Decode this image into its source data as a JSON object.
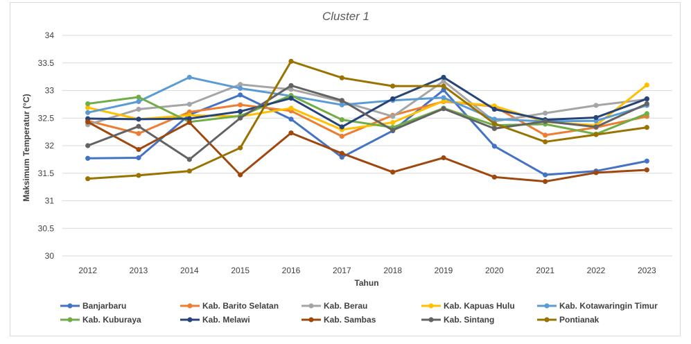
{
  "chart_data": {
    "type": "line",
    "title": "Cluster 1",
    "xlabel": "Tahun",
    "ylabel": "Maksimum Temperatur (°C)",
    "ylim": [
      30,
      34
    ],
    "yticks": [
      "30",
      "30.5",
      "31",
      "31.5",
      "32",
      "32.5",
      "33",
      "33.5",
      "34"
    ],
    "categories": [
      "2012",
      "2013",
      "2014",
      "2015",
      "2016",
      "2017",
      "2018",
      "2019",
      "2020",
      "2021",
      "2022",
      "2023"
    ],
    "grid": "horizontal",
    "legend_position": "bottom",
    "series": [
      {
        "name": "Banjarbaru",
        "color": "#4472c4",
        "values": [
          31.77,
          31.78,
          32.56,
          32.92,
          32.48,
          31.79,
          32.27,
          33.01,
          31.99,
          31.47,
          31.54,
          31.72
        ]
      },
      {
        "name": "Kab. Barito Selatan",
        "color": "#ed7d31",
        "values": [
          32.45,
          32.22,
          32.61,
          32.74,
          32.63,
          32.17,
          32.55,
          32.8,
          32.71,
          32.19,
          32.33,
          32.53
        ]
      },
      {
        "name": "Kab. Berau",
        "color": "#a5a5a5",
        "values": [
          32.38,
          32.66,
          32.75,
          33.11,
          33.02,
          32.8,
          32.53,
          33.17,
          32.44,
          32.59,
          32.73,
          32.84
        ]
      },
      {
        "name": "Kab. Kapuas Hulu",
        "color": "#ffc000",
        "values": [
          32.69,
          32.48,
          32.55,
          32.53,
          32.68,
          32.29,
          32.42,
          32.81,
          32.72,
          32.43,
          32.37,
          33.1
        ]
      },
      {
        "name": "Kab. Kotawaringin Timur",
        "color": "#5b9bd5",
        "values": [
          32.6,
          32.8,
          33.24,
          33.04,
          32.9,
          32.74,
          32.82,
          32.87,
          32.48,
          32.44,
          32.45,
          32.73
        ]
      },
      {
        "name": "Kab. Kuburaya",
        "color": "#70ad47",
        "values": [
          32.76,
          32.88,
          32.43,
          32.54,
          32.91,
          32.47,
          32.33,
          32.68,
          32.37,
          32.39,
          32.21,
          32.58
        ]
      },
      {
        "name": "Kab. Melawi",
        "color": "#264478",
        "values": [
          32.49,
          32.48,
          32.49,
          32.62,
          32.86,
          32.34,
          32.85,
          33.24,
          32.66,
          32.47,
          32.51,
          32.85
        ]
      },
      {
        "name": "Kab. Sambas",
        "color": "#9e480e",
        "values": [
          32.43,
          31.93,
          32.42,
          31.47,
          32.23,
          31.86,
          31.52,
          31.78,
          31.43,
          31.35,
          31.51,
          31.56
        ]
      },
      {
        "name": "Kab. Sintang",
        "color": "#636363",
        "values": [
          32.0,
          32.35,
          31.75,
          32.5,
          33.09,
          32.82,
          32.28,
          32.67,
          32.31,
          32.44,
          32.34,
          32.76
        ]
      },
      {
        "name": "Pontianak",
        "color": "#997300",
        "values": [
          31.4,
          31.46,
          31.54,
          31.96,
          33.53,
          33.23,
          33.08,
          33.08,
          32.4,
          32.07,
          32.2,
          32.33
        ]
      }
    ]
  }
}
